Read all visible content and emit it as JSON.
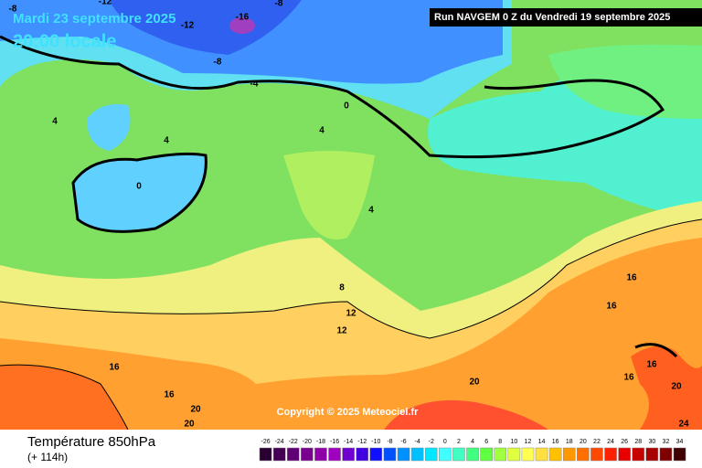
{
  "header": {
    "date": "Mardi 23 septembre 2025",
    "time": "20:00 locale",
    "run": "Run NAVGEM 0 Z du Vendredi 19 septembre 2025"
  },
  "map": {
    "copyright": "Copyright © 2025 Meteociel.fr",
    "contour_labels": [
      -8,
      -12,
      -16,
      -8,
      -12,
      -8,
      -4,
      0,
      4,
      4,
      4,
      0,
      4,
      8,
      12,
      12,
      16,
      16,
      16,
      16,
      16,
      20,
      20,
      20,
      16,
      20,
      24
    ]
  },
  "footer": {
    "title": "Température 850hPa",
    "lead": "(+ 114h)",
    "scale": [
      -26,
      -24,
      -22,
      -20,
      -18,
      -16,
      -14,
      -12,
      -10,
      -8,
      -6,
      -4,
      -2,
      0,
      2,
      4,
      6,
      8,
      10,
      12,
      14,
      16,
      18,
      20,
      22,
      24,
      26,
      28,
      30,
      32,
      34
    ]
  }
}
